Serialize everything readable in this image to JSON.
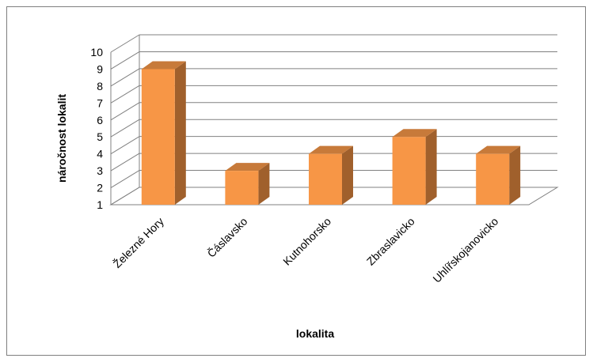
{
  "chart_data": {
    "type": "bar",
    "title": "",
    "xlabel": "lokalita",
    "ylabel": "náročnost lokalit",
    "categories": [
      "Železné Hory",
      "Čáslavsko",
      "Kutnohorsko",
      "Zbraslavicko",
      "Uhlířskojanovicko"
    ],
    "values": [
      9,
      3,
      4,
      5,
      4
    ],
    "ylim": [
      1,
      10
    ],
    "yticks": [
      "1",
      "2",
      "3",
      "4",
      "5",
      "6",
      "7",
      "8",
      "9",
      "10"
    ],
    "grid": true,
    "legend": "none",
    "style": "3d",
    "colors": {
      "front": "#F79646",
      "side": "#A0602C",
      "top": "#C77A3A",
      "grid": "#808080",
      "frame": "#7F7F7F"
    }
  }
}
